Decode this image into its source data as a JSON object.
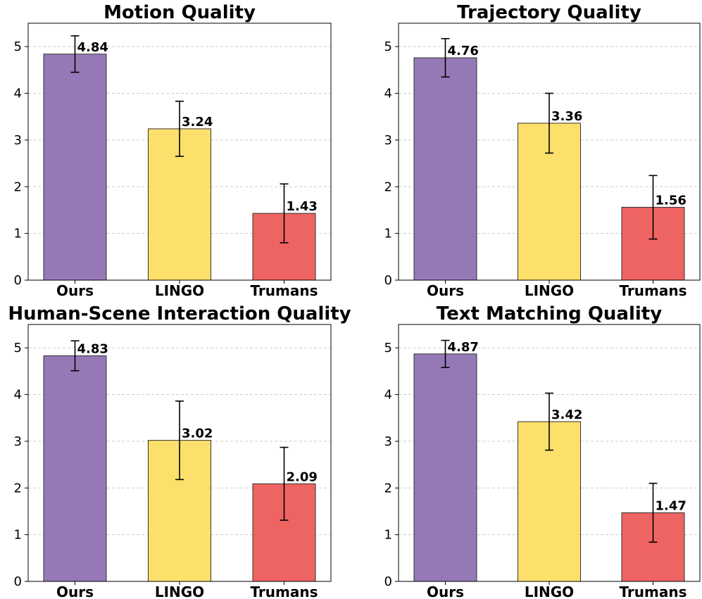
{
  "chart_data": [
    {
      "type": "bar",
      "title": "Motion Quality",
      "categories": [
        "Ours",
        "LINGO",
        "Trumans"
      ],
      "values": [
        4.84,
        3.24,
        1.43
      ],
      "value_labels": [
        "4.84",
        "3.24",
        "1.43"
      ],
      "error_low": [
        4.45,
        2.65,
        0.8
      ],
      "error_high": [
        5.23,
        3.83,
        2.06
      ],
      "ylim": [
        0,
        5.5
      ],
      "yticks": [
        0,
        1,
        2,
        3,
        4,
        5
      ],
      "ytick_labels": [
        "0",
        "1",
        "2",
        "3",
        "4",
        "5"
      ],
      "grid": true
    },
    {
      "type": "bar",
      "title": "Trajectory Quality",
      "categories": [
        "Ours",
        "LINGO",
        "Trumans"
      ],
      "values": [
        4.76,
        3.36,
        1.56
      ],
      "value_labels": [
        "4.76",
        "3.36",
        "1.56"
      ],
      "error_low": [
        4.35,
        2.72,
        0.88
      ],
      "error_high": [
        5.17,
        4.0,
        2.24
      ],
      "ylim": [
        0,
        5.5
      ],
      "yticks": [
        0,
        1,
        2,
        3,
        4,
        5
      ],
      "ytick_labels": [
        "0",
        "1",
        "2",
        "3",
        "4",
        "5"
      ],
      "grid": true
    },
    {
      "type": "bar",
      "title": "Human-Scene Interaction Quality",
      "categories": [
        "Ours",
        "LINGO",
        "Trumans"
      ],
      "values": [
        4.83,
        3.02,
        2.09
      ],
      "value_labels": [
        "4.83",
        "3.02",
        "2.09"
      ],
      "error_low": [
        4.51,
        2.18,
        1.31
      ],
      "error_high": [
        5.15,
        3.86,
        2.87
      ],
      "ylim": [
        0,
        5.5
      ],
      "yticks": [
        0,
        1,
        2,
        3,
        4,
        5
      ],
      "ytick_labels": [
        "0",
        "1",
        "2",
        "3",
        "4",
        "5"
      ],
      "grid": true
    },
    {
      "type": "bar",
      "title": "Text Matching Quality",
      "categories": [
        "Ours",
        "LINGO",
        "Trumans"
      ],
      "values": [
        4.87,
        3.42,
        1.47
      ],
      "value_labels": [
        "4.87",
        "3.42",
        "1.47"
      ],
      "error_low": [
        4.58,
        2.81,
        0.84
      ],
      "error_high": [
        5.16,
        4.03,
        2.1
      ],
      "ylim": [
        0,
        5.5
      ],
      "yticks": [
        0,
        1,
        2,
        3,
        4,
        5
      ],
      "ytick_labels": [
        "0",
        "1",
        "2",
        "3",
        "4",
        "5"
      ],
      "grid": true
    }
  ],
  "colors": {
    "bars": [
      "#9579b7",
      "#fde06b",
      "#ee6462"
    ],
    "edge": "#333333",
    "grid": "#cccccc"
  }
}
